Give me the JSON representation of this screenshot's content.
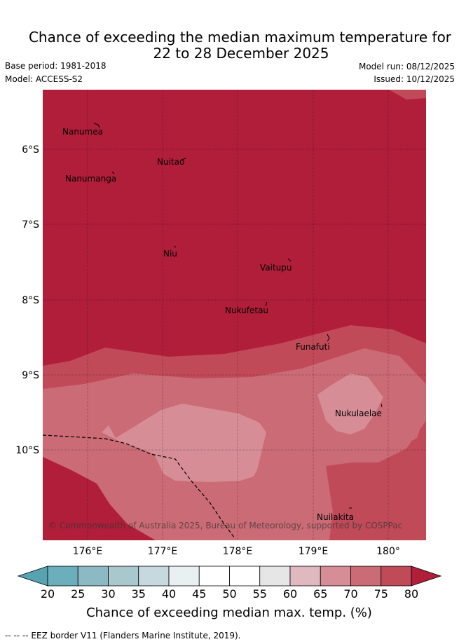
{
  "title": {
    "line1": "Chance of exceeding the median maximum temperature for",
    "line2": "22 to 28 December 2025"
  },
  "meta": {
    "base_period": "Base period: 1981-2018",
    "model": "Model: ACCESS-S2",
    "model_run": "Model run: 08/12/2025",
    "issued": "Issued: 10/12/2025"
  },
  "map": {
    "copyright": "© Commonwealth of Australia 2025, Bureau of Meteorology, supported by COSPPac",
    "places": [
      "Nanumea",
      "Nuitao",
      "Nanumanga",
      "Niu",
      "Vaitupu",
      "Nukufetau",
      "Funafuti",
      "Nukulaelae",
      "Nuilakita"
    ],
    "lat_labels": [
      "6°S",
      "7°S",
      "8°S",
      "9°S",
      "10°S"
    ],
    "lon_labels": [
      "176°E",
      "177°E",
      "178°E",
      "179°E",
      "180°"
    ]
  },
  "colorbar": {
    "ticks": [
      "20",
      "25",
      "30",
      "35",
      "40",
      "45",
      "50",
      "55",
      "60",
      "65",
      "70",
      "75",
      "80"
    ],
    "colors": [
      "#6aafbb",
      "#8cb9c4",
      "#a9c8cd",
      "#c5d9de",
      "#e8f0f2",
      "#ffffff",
      "#ffffff",
      "#e6e6e6",
      "#dfb8c0",
      "#d68d96",
      "#cb6b76",
      "#c14a59",
      "#b01e3a"
    ],
    "under_color": "#56a3b1",
    "over_color": "#b01e3a",
    "label": "Chance of exceeding median max. temp. (%)"
  },
  "footer": {
    "legend": "--  --  -- EEZ border V11 (Flanders Marine Institute, 2019)."
  }
}
